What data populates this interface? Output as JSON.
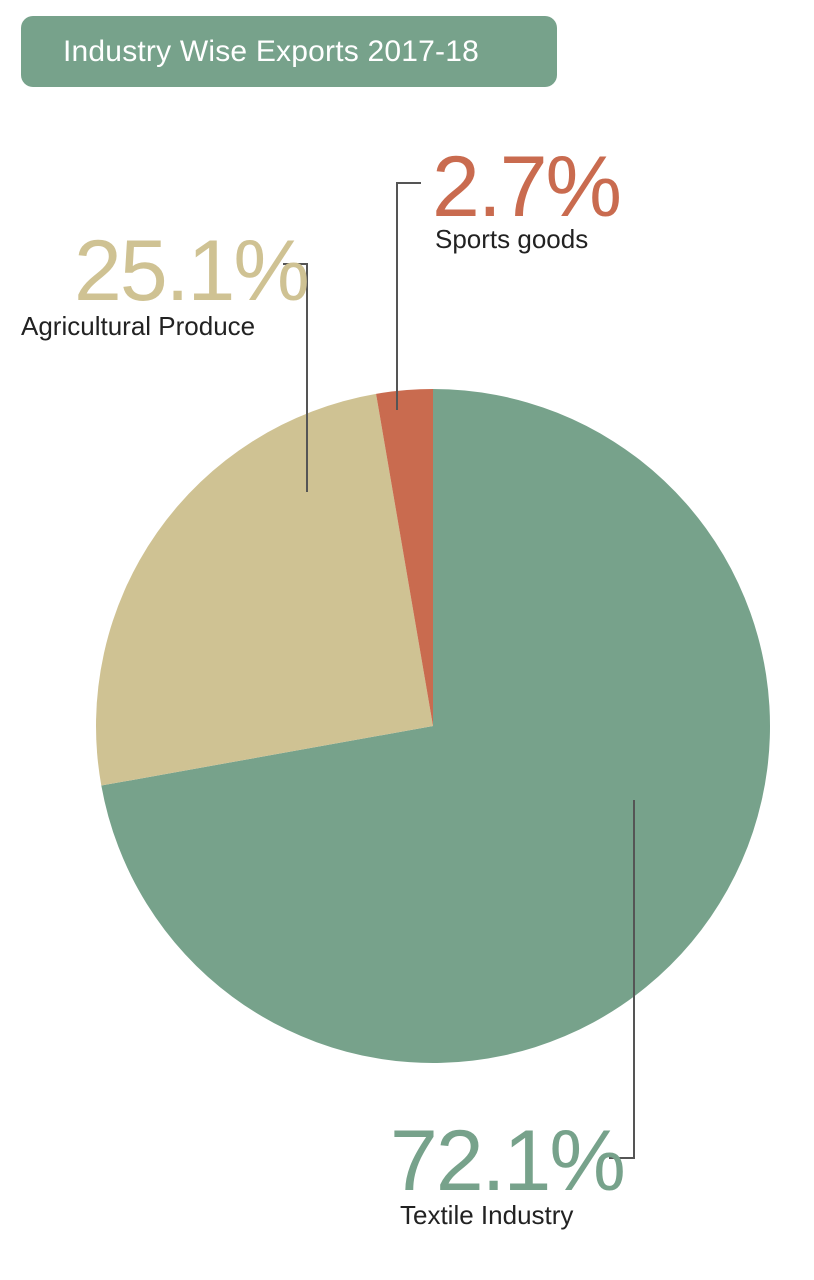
{
  "title": "Industry Wise Exports 2017-18",
  "chart_data": {
    "type": "pie",
    "title": "Industry Wise Exports 2017-18",
    "start_angle_deg": 0,
    "direction": "clockwise",
    "slices": [
      {
        "label": "Textile Industry",
        "value": 72.1,
        "value_label": "72.1%",
        "color": "#77a28b"
      },
      {
        "label": "Agricultural Produce",
        "value": 25.1,
        "value_label": "25.1%",
        "color": "#cfc293"
      },
      {
        "label": "Sports goods",
        "value": 2.7,
        "value_label": "2.7%",
        "color": "#c96b4f"
      }
    ],
    "leader_line_color": "#555555"
  }
}
